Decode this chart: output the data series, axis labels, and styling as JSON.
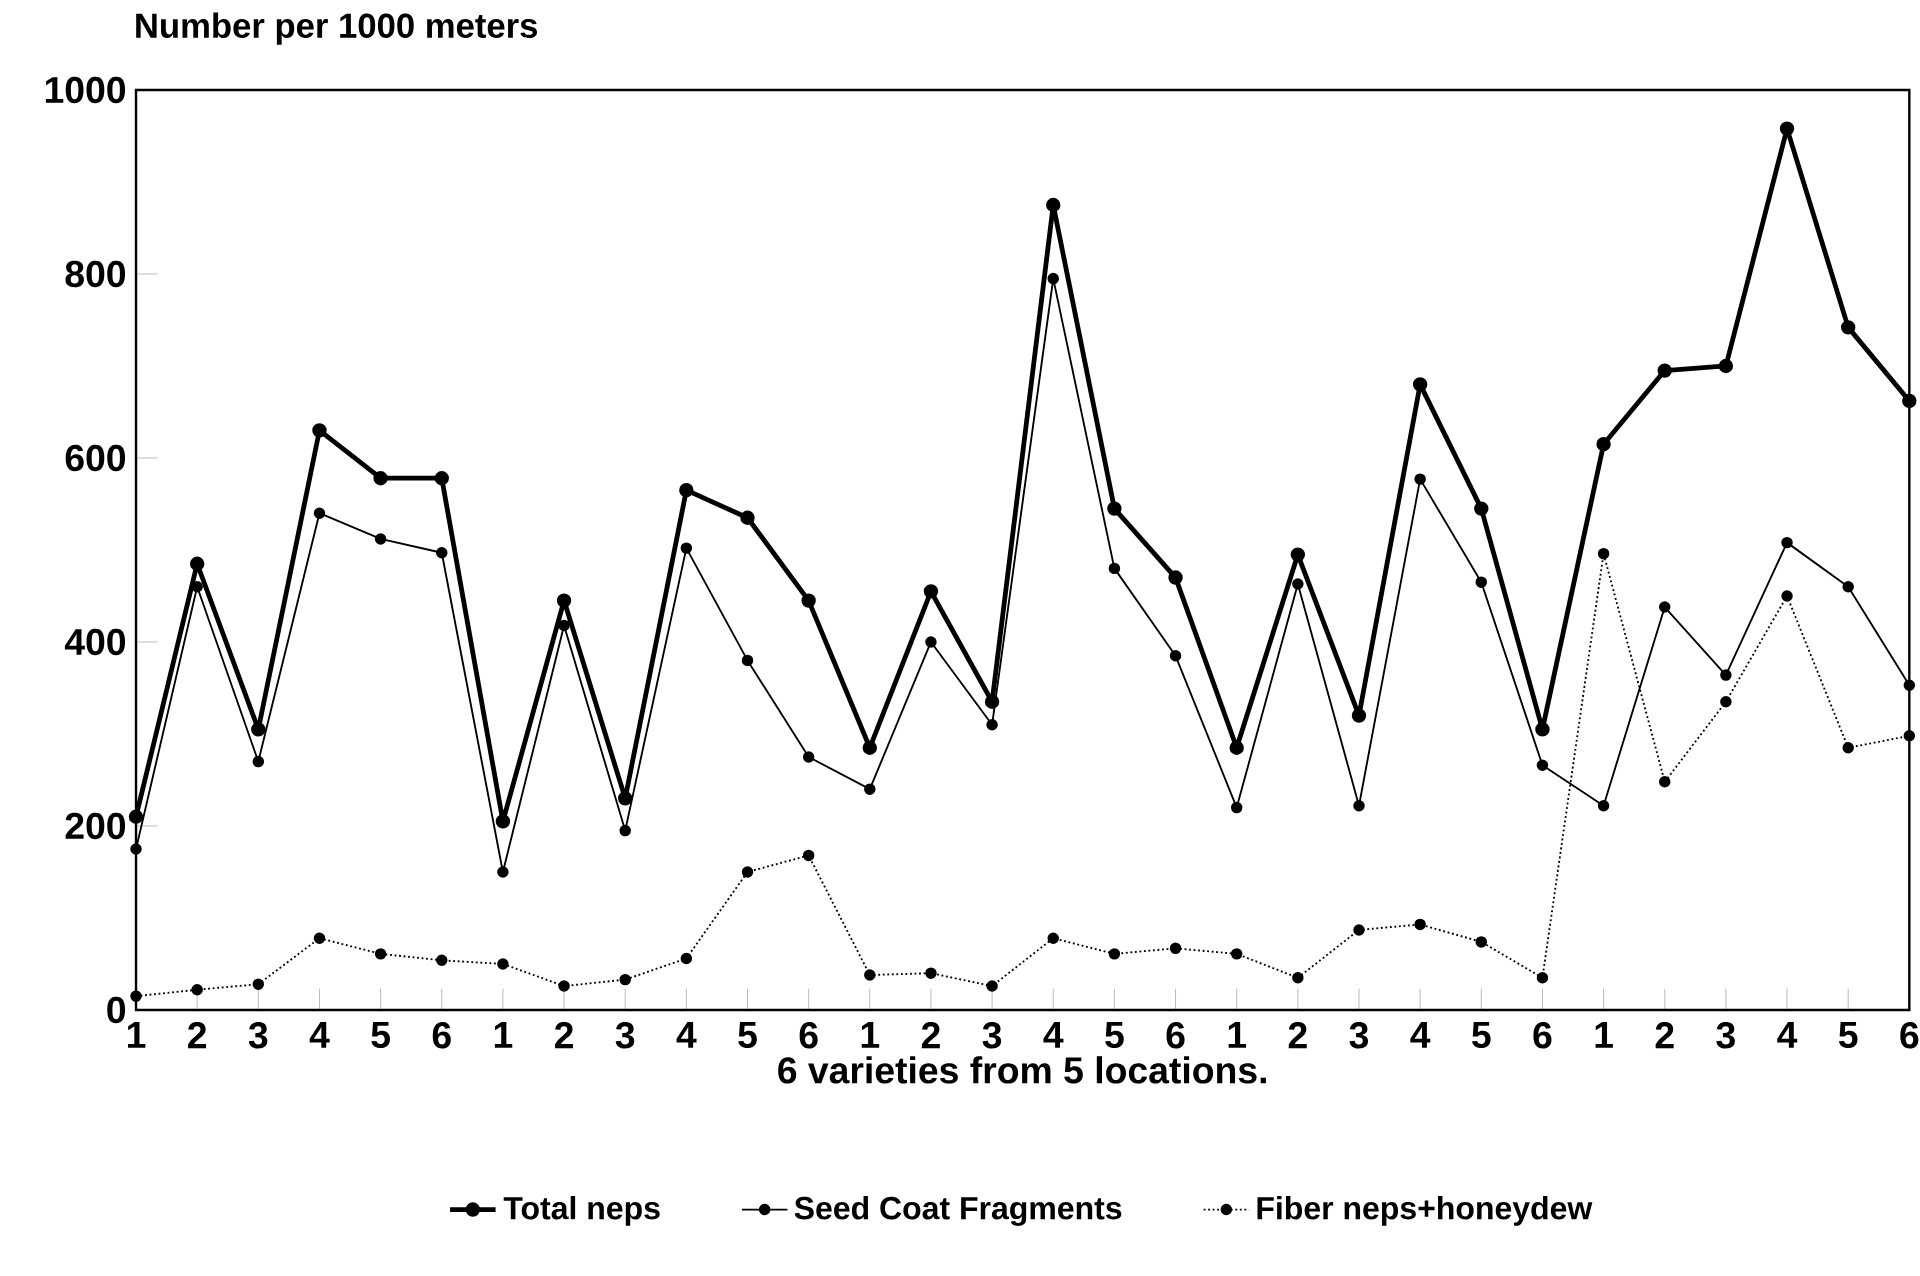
{
  "chart_data": {
    "type": "line",
    "ylabel": "Number per 1000 meters",
    "xlabel": "6 varieties from 5 locations.",
    "categories": [
      "1",
      "2",
      "3",
      "4",
      "5",
      "6",
      "1",
      "2",
      "3",
      "4",
      "5",
      "6",
      "1",
      "2",
      "3",
      "4",
      "5",
      "6",
      "1",
      "2",
      "3",
      "4",
      "5",
      "6",
      "1",
      "2",
      "3",
      "4",
      "5",
      "6"
    ],
    "series": [
      {
        "name": "Total neps",
        "color": "#000000",
        "line_style": "solid",
        "values": [
          210,
          485,
          305,
          630,
          578,
          578,
          205,
          445,
          230,
          565,
          535,
          445,
          285,
          455,
          335,
          875,
          545,
          470,
          285,
          495,
          320,
          680,
          545,
          305,
          615,
          695,
          700,
          958,
          742,
          662
        ]
      },
      {
        "name": "Seed Coat Fragments",
        "color": "#000000",
        "line_style": "solid",
        "values": [
          175,
          460,
          270,
          540,
          512,
          497,
          150,
          418,
          195,
          502,
          380,
          275,
          240,
          400,
          310,
          795,
          480,
          385,
          220,
          463,
          222,
          577,
          465,
          266,
          222,
          438,
          364,
          508,
          460,
          353
        ]
      },
      {
        "name": "Fiber neps+honeydew",
        "color": "#000000",
        "line_style": "dotted",
        "values": [
          15,
          22,
          28,
          78,
          61,
          54,
          50,
          26,
          33,
          56,
          150,
          168,
          38,
          40,
          26,
          78,
          61,
          67,
          61,
          35,
          87,
          93,
          74,
          35,
          496,
          248,
          335,
          450,
          285,
          298
        ]
      }
    ],
    "ylim": [
      0,
      1000
    ],
    "yticks": [
      0,
      200,
      400,
      600,
      800,
      1000
    ],
    "marker": "circle",
    "legend": "bottom",
    "grid": false
  }
}
